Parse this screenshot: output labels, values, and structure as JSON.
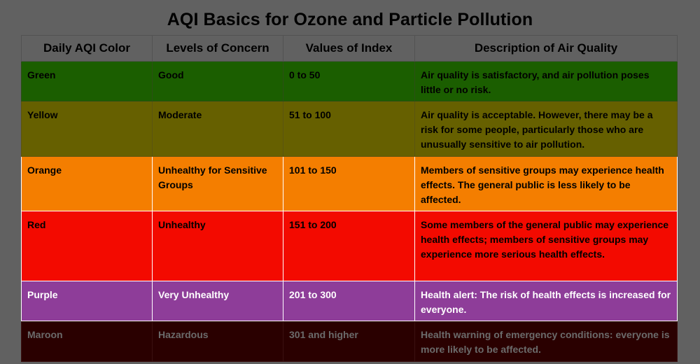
{
  "title": "AQI Basics for Ozone and Particle Pollution",
  "table": {
    "headers": [
      "Daily AQI Color",
      "Levels of Concern",
      "Values of Index",
      "Description of Air Quality"
    ],
    "rows": [
      {
        "color": "Green",
        "concern": "Good",
        "values": "0 to 50",
        "description": "Air quality is satisfactory, and air pollution poses little or no risk.",
        "bg": "#1b5e00"
      },
      {
        "color": "Yellow",
        "concern": "Moderate",
        "values": "51 to 100",
        "description": "Air quality is acceptable. However, there may be a risk for some people, particularly those who are unusually sensitive to air pollution.",
        "bg": "#666000"
      },
      {
        "color": "Orange",
        "concern": "Unhealthy for Sensitive Groups",
        "values": "101 to 150",
        "description": "Members of sensitive groups may experience health effects. The general public is less likely to be affected.",
        "bg": "#f47e00"
      },
      {
        "color": "Red",
        "concern": "Unhealthy",
        "values": "151 to 200",
        "description": "Some members of the general public may experience health effects; members of sensitive groups may experience more serious health effects.",
        "bg": "#f30a00"
      },
      {
        "color": "Purple",
        "concern": "Very Unhealthy",
        "values": "201 to 300",
        "description": "Health alert: The risk of health effects is increased for everyone.",
        "bg": "#8e3d99"
      },
      {
        "color": "Maroon",
        "concern": "Hazardous",
        "values": "301 and higher",
        "description": "Health warning of emergency conditions: everyone is more likely to be affected.",
        "bg": "#2a0000"
      }
    ]
  }
}
